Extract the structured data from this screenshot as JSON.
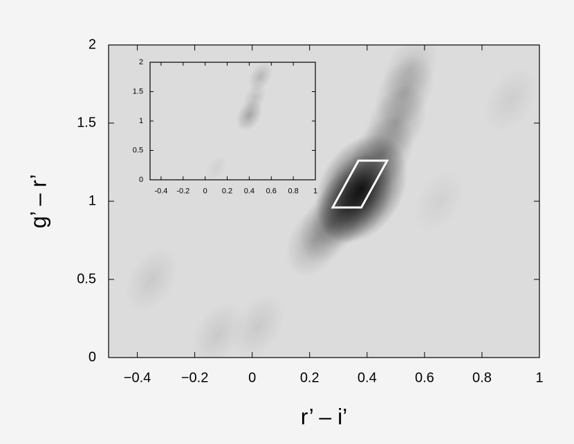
{
  "chart_data": [
    {
      "type": "density",
      "xlabel": "r’ – i’",
      "ylabel": "g’ – r’",
      "xlim": [
        -0.5,
        1
      ],
      "ylim": [
        0,
        2
      ],
      "xticks": [
        {
          "value": -0.4,
          "label": "−0.4"
        },
        {
          "value": -0.2,
          "label": "−0.2"
        },
        0,
        0.2,
        0.4,
        0.6,
        0.8,
        1
      ],
      "yticks": [
        0,
        0.5,
        1,
        1.5,
        2
      ],
      "x": [
        0.38,
        0.36,
        0.22,
        0.27,
        0.32,
        0.45,
        0.5,
        0.53,
        0.55,
        -0.35,
        -0.12,
        0.02,
        0.9,
        0.65
      ],
      "y": [
        1.08,
        1.02,
        0.75,
        0.85,
        0.95,
        1.3,
        1.5,
        1.7,
        1.85,
        0.5,
        0.15,
        0.2,
        1.65,
        1.0
      ],
      "weight": [
        1,
        0.6,
        0.25,
        0.3,
        0.4,
        0.35,
        0.3,
        0.25,
        0.15,
        0.1,
        0.1,
        0.1,
        0.08,
        0.06
      ],
      "region": {
        "x": [
          0.28,
          0.37,
          0.47,
          0.38
        ],
        "y": [
          0.96,
          1.26,
          1.26,
          0.96
        ]
      }
    },
    {
      "type": "density",
      "xlim": [
        -0.5,
        1
      ],
      "ylim": [
        0,
        2
      ],
      "xticks": [
        {
          "value": -0.4,
          "label": "-0.4"
        },
        {
          "value": -0.2,
          "label": "-0.2"
        },
        0,
        0.2,
        0.4,
        0.6,
        0.8,
        1
      ],
      "yticks": [
        0,
        0.5,
        1,
        1.5,
        2
      ],
      "x": [
        0.4,
        0.45,
        0.5,
        0.1
      ],
      "y": [
        1.1,
        1.4,
        1.75,
        0.2
      ],
      "weight": [
        0.3,
        0.15,
        0.2,
        0.06
      ]
    }
  ]
}
